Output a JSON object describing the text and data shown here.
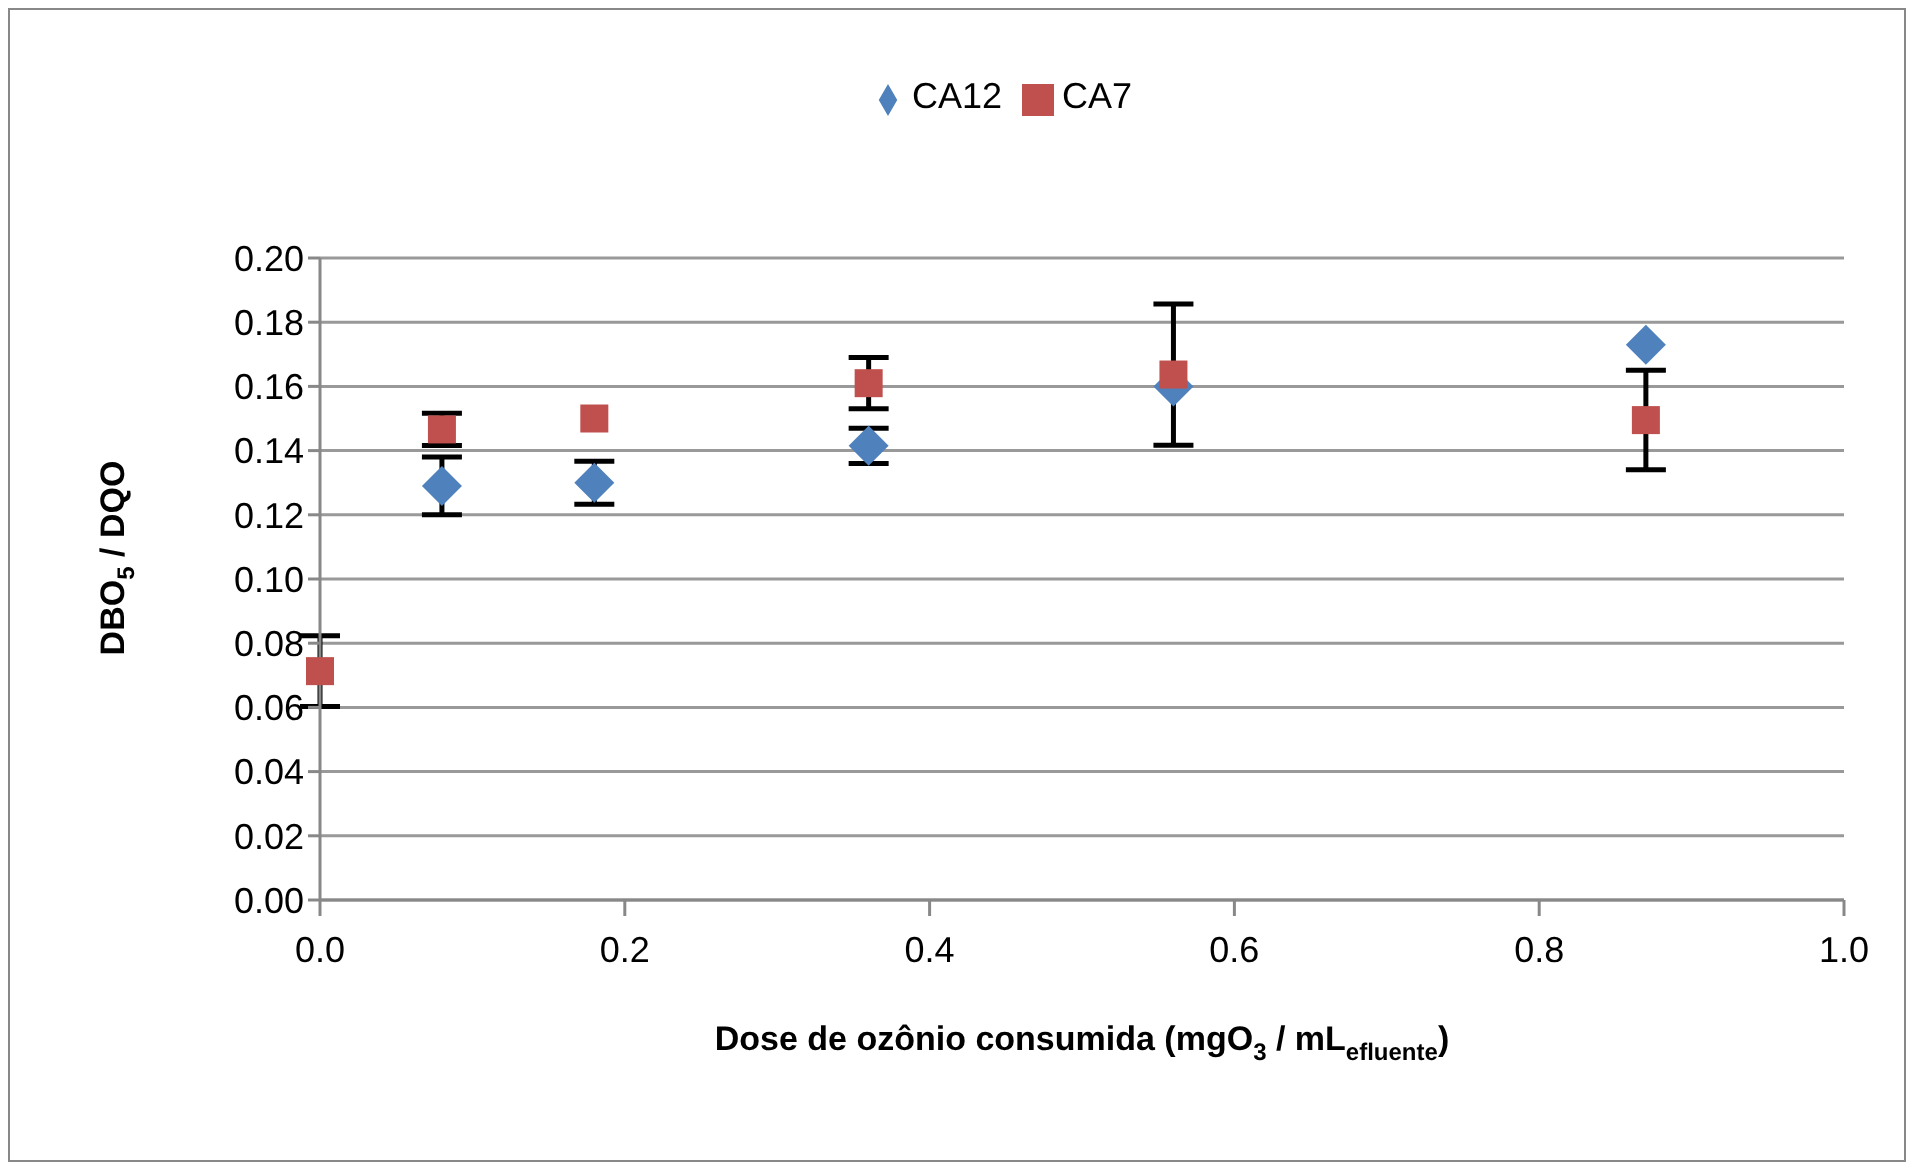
{
  "chart_data": {
    "type": "scatter",
    "xlabel": "Dose de ozônio consumida (mgO$_{3}$ / mL$_{efluente}$)",
    "ylabel": "DBO$_{5}$ / DQO",
    "x": [
      0,
      0.08,
      0.18,
      0.36,
      0.56,
      0.87
    ],
    "series": [
      {
        "name": "CA12",
        "color": "#4f81bd",
        "marker": "diamond",
        "values": [
          null,
          0.129,
          0.13,
          0.1415,
          0.16,
          0.173
        ],
        "errors": [
          null,
          0.009,
          0.0067,
          0.0055,
          null,
          null
        ]
      },
      {
        "name": "CA7",
        "color": "#c0504d",
        "marker": "square",
        "values": [
          0.0713,
          0.1466,
          0.15,
          0.161,
          0.1637,
          0.1495
        ],
        "errors": [
          0.011,
          0.005,
          null,
          0.008,
          0.022,
          0.0155
        ]
      }
    ],
    "xlim": [
      0,
      1
    ],
    "xticks": [
      {
        "value": 0,
        "label": "0.0"
      },
      {
        "value": 0.2,
        "label": "0.2"
      },
      {
        "value": 0.4,
        "label": "0.4"
      },
      {
        "value": 0.6,
        "label": "0.6"
      },
      {
        "value": 0.8,
        "label": "0.8"
      },
      {
        "value": 1,
        "label": "1.0"
      }
    ],
    "ylim": [
      0,
      0.2
    ],
    "yticks": [
      {
        "value": 0,
        "label": "0.00"
      },
      {
        "value": 0.02,
        "label": "0.02"
      },
      {
        "value": 0.04,
        "label": "0.04"
      },
      {
        "value": 0.06,
        "label": "0.06"
      },
      {
        "value": 0.08,
        "label": "0.08"
      },
      {
        "value": 0.1,
        "label": "0.10"
      },
      {
        "value": 0.12,
        "label": "0.12"
      },
      {
        "value": 0.14,
        "label": "0.14"
      },
      {
        "value": 0.16,
        "label": "0.16"
      },
      {
        "value": 0.18,
        "label": "0.18"
      },
      {
        "value": 0.2,
        "label": "0.20"
      }
    ],
    "grid": "y",
    "legend": "top"
  }
}
